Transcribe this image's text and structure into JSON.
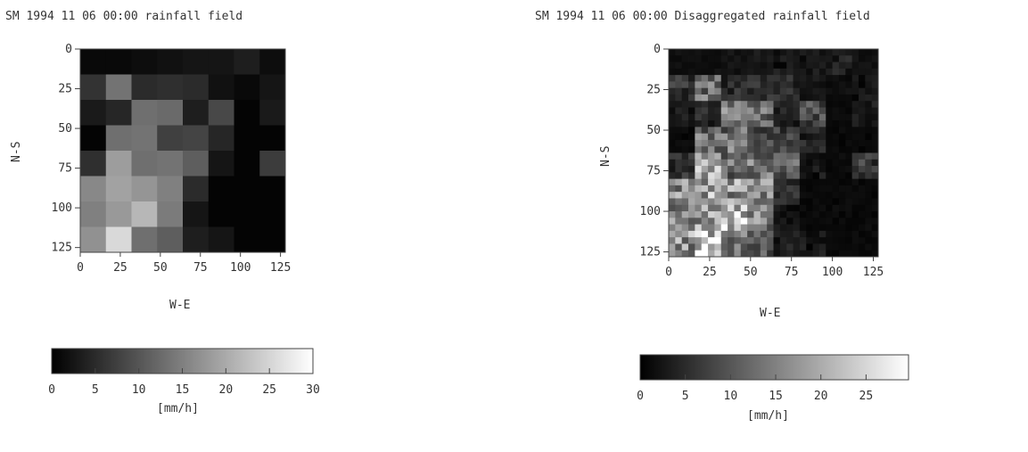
{
  "chart_data": [
    {
      "type": "heatmap",
      "title": "SM 1994 11 06 00:00 rainfall field",
      "xlabel": "W-E",
      "ylabel": "N-S",
      "xlim": [
        0,
        128
      ],
      "ylim": [
        0,
        128
      ],
      "y_inverted": true,
      "x_ticks": [
        "0",
        "25",
        "50",
        "75",
        "100",
        "125"
      ],
      "y_ticks": [
        "0",
        "25",
        "50",
        "75",
        "100",
        "125"
      ],
      "grid_size": [
        8,
        8
      ],
      "cell_size": 16,
      "values": [
        [
          1.0,
          1.0,
          1.5,
          2.0,
          2.5,
          2.5,
          3.5,
          1.5
        ],
        [
          6.0,
          13.5,
          5.0,
          5.5,
          5.0,
          2.0,
          1.0,
          2.5
        ],
        [
          3.0,
          4.5,
          13.0,
          12.5,
          3.5,
          8.5,
          0.5,
          3.0
        ],
        [
          0.5,
          13.0,
          13.5,
          7.5,
          8.0,
          4.5,
          0.5,
          0.5
        ],
        [
          5.5,
          18.5,
          13.0,
          13.5,
          11.0,
          2.5,
          0.5,
          7.0
        ],
        [
          16.0,
          19.0,
          17.5,
          15.0,
          5.0,
          0.5,
          0.5,
          0.5
        ],
        [
          15.0,
          18.0,
          21.5,
          14.5,
          2.5,
          0.5,
          0.5,
          0.5
        ],
        [
          17.0,
          25.5,
          13.0,
          11.0,
          3.5,
          2.5,
          0.5,
          0.5
        ]
      ],
      "colorbar": {
        "label": "[mm/h]",
        "range": [
          0,
          30
        ],
        "ticks": [
          "0",
          "5",
          "10",
          "15",
          "20",
          "25",
          "30"
        ],
        "colormap": "grayscale black-to-white"
      }
    },
    {
      "type": "heatmap",
      "title": "SM 1994 11 06 00:00 Disaggregated rainfall field",
      "xlabel": "W-E",
      "ylabel": "N-S",
      "xlim": [
        0,
        128
      ],
      "ylim": [
        0,
        128
      ],
      "y_inverted": true,
      "x_ticks": [
        "0",
        "25",
        "50",
        "75",
        "100",
        "125"
      ],
      "y_ticks": [
        "0",
        "25",
        "50",
        "75",
        "100",
        "125"
      ],
      "grid_size": [
        128,
        128
      ],
      "disaggregated_from": "8x8 field, noisy fine-scale variation within each coarse cell",
      "colorbar": {
        "label": "[mm/h]",
        "range": [
          0,
          30
        ],
        "ticks": [
          "0",
          "5",
          "10",
          "15",
          "20",
          "25"
        ],
        "colormap": "grayscale black-to-white"
      }
    }
  ]
}
